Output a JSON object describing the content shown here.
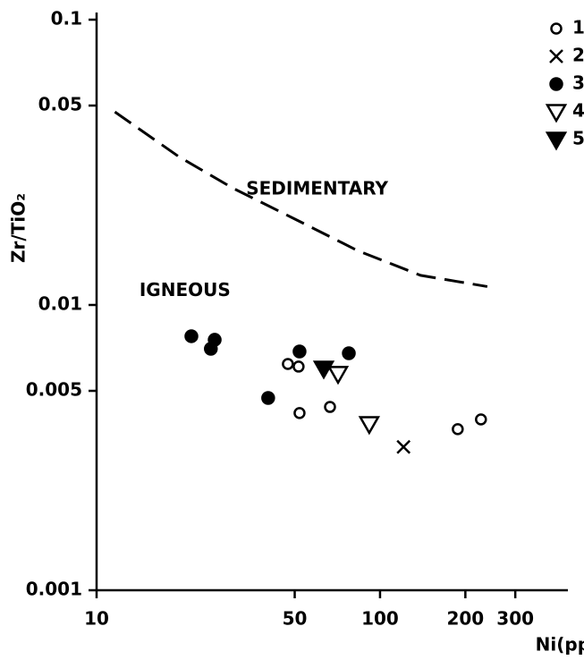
{
  "chart_data": {
    "type": "scatter",
    "xlabel": "Ni(ppm)",
    "ylabel": "Zr/TiO₂",
    "log_x": true,
    "log_y": true,
    "xlim": [
      10,
      460
    ],
    "ylim": [
      0.001,
      0.1
    ],
    "xticks": [
      10,
      50,
      100,
      200,
      300
    ],
    "yticks": [
      0.001,
      0.005,
      0.01,
      0.05,
      0.1
    ],
    "annotations": [
      {
        "text": "SEDIMENTARY",
        "x": 60,
        "y": 0.0254
      },
      {
        "text": "IGNEOUS",
        "x": 20.5,
        "y": 0.0112
      }
    ],
    "boundary": {
      "style": "dashed",
      "color": "#000000",
      "x": [
        11.6,
        19.5,
        30.2,
        50.1,
        83.4,
        139,
        239
      ],
      "y": [
        0.0475,
        0.0331,
        0.0257,
        0.02,
        0.0155,
        0.0127,
        0.0116
      ]
    },
    "series": [
      {
        "name": "1",
        "marker": "circle-open",
        "color": "#000000",
        "x": [
          47.3,
          51.6,
          52,
          66.6,
          188,
          227
        ],
        "y": [
          0.00621,
          0.00608,
          0.00418,
          0.00439,
          0.00367,
          0.00397
        ]
      },
      {
        "name": "2",
        "marker": "x",
        "color": "#000000",
        "x": [
          121
        ],
        "y": [
          0.00318
        ]
      },
      {
        "name": "3",
        "marker": "circle",
        "color": "#000000",
        "x": [
          21.6,
          25.3,
          26.1,
          40.3,
          52,
          77.6
        ],
        "y": [
          0.00777,
          0.00702,
          0.00755,
          0.00472,
          0.00687,
          0.00677
        ]
      },
      {
        "name": "4",
        "marker": "triangle-open",
        "color": "#000000",
        "x": [
          71.1,
          91.6
        ],
        "y": [
          0.00574,
          0.00383
        ]
      },
      {
        "name": "5",
        "marker": "triangle",
        "color": "#000000",
        "x": [
          63.3
        ],
        "y": [
          0.00599
        ]
      }
    ]
  }
}
